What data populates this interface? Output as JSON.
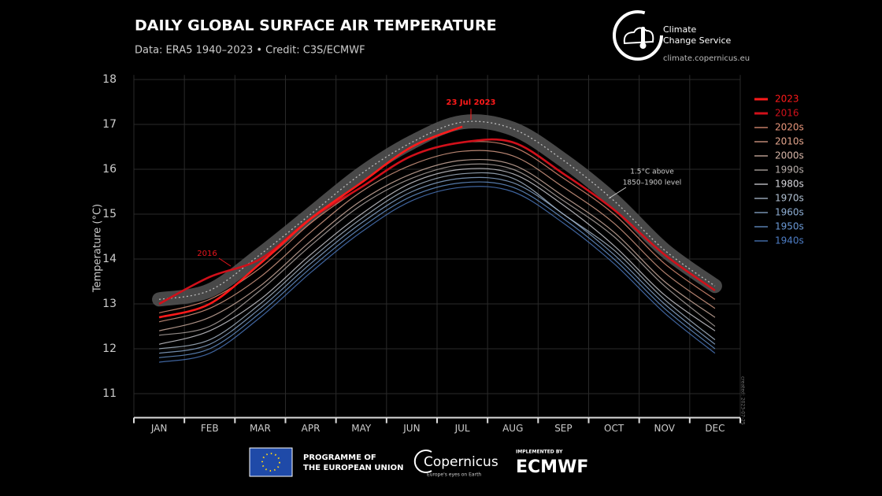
{
  "chart_data": {
    "type": "line",
    "title": "DAILY GLOBAL SURFACE AIR TEMPERATURE",
    "subtitle": "Data: ERA5 1940–2023 • Credit: C3S/ECMWF",
    "y_label": "Temperature (°C)",
    "categories": [
      "JAN",
      "FEB",
      "MAR",
      "APR",
      "MAY",
      "JUN",
      "JUL",
      "AUG",
      "SEP",
      "OCT",
      "NOV",
      "DEC"
    ],
    "ylim": [
      10.5,
      18.1
    ],
    "yticks": [
      11,
      12,
      13,
      14,
      15,
      16,
      17,
      18
    ],
    "grid": true,
    "legend": "right",
    "series": [
      {
        "name": "2023",
        "color": "#ff1a1a",
        "values": [
          12.7,
          13.0,
          13.9,
          14.9,
          15.7,
          16.5,
          16.95,
          null,
          null,
          null,
          null,
          null
        ]
      },
      {
        "name": "2016",
        "color": "#d0101a",
        "values": [
          13.0,
          13.6,
          14.0,
          14.9,
          15.6,
          16.3,
          16.6,
          16.6,
          15.9,
          15.1,
          14.1,
          13.3
        ]
      },
      {
        "name": "2020s",
        "color": "#e8957a",
        "values": [
          12.8,
          13.1,
          13.8,
          14.8,
          15.6,
          16.3,
          16.6,
          16.5,
          15.8,
          15.0,
          13.9,
          13.1
        ]
      },
      {
        "name": "2010s",
        "color": "#e2a48c",
        "values": [
          12.6,
          12.9,
          13.6,
          14.6,
          15.5,
          16.1,
          16.4,
          16.3,
          15.6,
          14.8,
          13.7,
          12.9
        ]
      },
      {
        "name": "2000s",
        "color": "#d8b6a8",
        "values": [
          12.4,
          12.7,
          13.4,
          14.4,
          15.3,
          15.9,
          16.2,
          16.1,
          15.4,
          14.6,
          13.5,
          12.7
        ]
      },
      {
        "name": "1990s",
        "color": "#b8aeaa",
        "values": [
          12.3,
          12.5,
          13.3,
          14.3,
          15.2,
          15.8,
          16.1,
          16.0,
          15.3,
          14.5,
          13.4,
          12.5
        ]
      },
      {
        "name": "1980s",
        "color": "#d6d6dc",
        "values": [
          12.1,
          12.4,
          13.1,
          14.1,
          15.0,
          15.7,
          16.0,
          15.9,
          15.2,
          14.3,
          13.2,
          12.4
        ]
      },
      {
        "name": "1970s",
        "color": "#b0c0d2",
        "values": [
          12.0,
          12.2,
          13.0,
          14.0,
          14.9,
          15.6,
          15.9,
          15.8,
          15.0,
          14.2,
          13.1,
          12.2
        ]
      },
      {
        "name": "1960s",
        "color": "#8eaed4",
        "values": [
          11.9,
          12.1,
          12.9,
          13.9,
          14.8,
          15.5,
          15.8,
          15.7,
          15.0,
          14.1,
          13.0,
          12.1
        ]
      },
      {
        "name": "1950s",
        "color": "#6a98d4",
        "values": [
          11.8,
          12.0,
          12.8,
          13.8,
          14.7,
          15.4,
          15.7,
          15.6,
          14.9,
          14.0,
          12.9,
          12.0
        ]
      },
      {
        "name": "1940s",
        "color": "#4d7cc4",
        "values": [
          11.7,
          11.9,
          12.7,
          13.7,
          14.6,
          15.3,
          15.6,
          15.5,
          14.8,
          13.9,
          12.8,
          11.9
        ]
      }
    ],
    "threshold": {
      "label_lines": [
        "1.5°C above",
        "1850–1900 level"
      ],
      "color": "#555555",
      "values": [
        13.1,
        13.3,
        14.1,
        15.0,
        15.9,
        16.6,
        17.05,
        16.9,
        16.2,
        15.3,
        14.2,
        13.4
      ]
    },
    "annotations": [
      "2016",
      "23 Jul 2023"
    ],
    "created": "created: 2023-07-25"
  },
  "header": {
    "logo_lines": [
      "Climate",
      "Change Service"
    ],
    "url": "climate.copernicus.eu"
  },
  "footer": {
    "eu": [
      "PROGRAMME OF",
      "THE EUROPEAN UNION"
    ],
    "copernicus": "Copernicus",
    "copernicus_tagline": "Europe's eyes on Earth",
    "implemented": "IMPLEMENTED BY",
    "ecmwf": "ECMWF"
  }
}
